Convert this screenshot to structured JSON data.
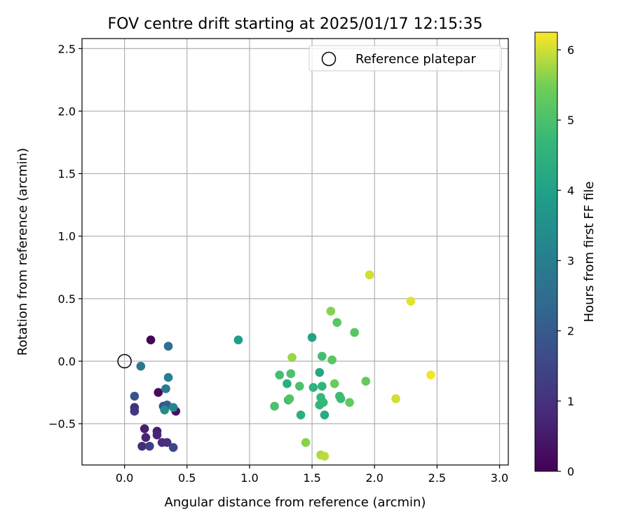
{
  "chart_data": {
    "type": "scatter",
    "title": "FOV centre drift starting at 2025/01/17 12:15:35",
    "xlabel": "Angular distance from reference (arcmin)",
    "ylabel": "Rotation from reference (arcmin)",
    "xlim": [
      -0.34,
      3.07
    ],
    "ylim": [
      -0.83,
      2.58
    ],
    "x_ticks": [
      0.0,
      0.5,
      1.0,
      1.5,
      2.0,
      2.5,
      3.0
    ],
    "x_tick_labels": [
      "0.0",
      "0.5",
      "1.0",
      "1.5",
      "2.0",
      "2.5",
      "3.0"
    ],
    "y_ticks": [
      -0.5,
      0.0,
      0.5,
      1.0,
      1.5,
      2.0,
      2.5
    ],
    "y_tick_labels": [
      "−0.5",
      "0.0",
      "0.5",
      "1.0",
      "1.5",
      "2.0",
      "2.5"
    ],
    "grid": true,
    "legend": {
      "position": "top-right",
      "entries": [
        "Reference platepar"
      ]
    },
    "reference_point": {
      "label": "Reference platepar",
      "x": 0.0,
      "y": 0.0
    },
    "colorbar": {
      "label": "Hours from first FF file",
      "range": [
        0,
        6.25
      ],
      "ticks": [
        0,
        1,
        2,
        3,
        4,
        5,
        6
      ],
      "tick_labels": [
        "0",
        "1",
        "2",
        "3",
        "4",
        "5",
        "6"
      ],
      "colormap": "viridis"
    },
    "series": [
      {
        "points": [
          {
            "x": 0.21,
            "y": 0.17,
            "c": 0.1
          },
          {
            "x": 0.27,
            "y": -0.25,
            "c": 0.2
          },
          {
            "x": 0.41,
            "y": -0.4,
            "c": 0.3
          },
          {
            "x": 0.16,
            "y": -0.54,
            "c": 0.6
          },
          {
            "x": 0.26,
            "y": -0.56,
            "c": 0.6
          },
          {
            "x": 0.17,
            "y": -0.61,
            "c": 0.7
          },
          {
            "x": 0.26,
            "y": -0.59,
            "c": 0.7
          },
          {
            "x": 0.14,
            "y": -0.68,
            "c": 0.9
          },
          {
            "x": 0.3,
            "y": -0.65,
            "c": 0.9
          },
          {
            "x": 0.34,
            "y": -0.65,
            "c": 1.0
          },
          {
            "x": 0.08,
            "y": -0.37,
            "c": 1.0
          },
          {
            "x": 0.08,
            "y": -0.4,
            "c": 1.1
          },
          {
            "x": 0.2,
            "y": -0.68,
            "c": 1.3
          },
          {
            "x": 0.39,
            "y": -0.69,
            "c": 1.5
          },
          {
            "x": 0.08,
            "y": -0.28,
            "c": 1.8
          },
          {
            "x": 0.31,
            "y": -0.36,
            "c": 1.9
          },
          {
            "x": 0.34,
            "y": -0.35,
            "c": 2.1
          },
          {
            "x": 0.35,
            "y": 0.12,
            "c": 2.6
          },
          {
            "x": 0.13,
            "y": -0.04,
            "c": 2.8
          },
          {
            "x": 0.33,
            "y": -0.22,
            "c": 2.9
          },
          {
            "x": 0.35,
            "y": -0.13,
            "c": 3.1
          },
          {
            "x": 0.39,
            "y": -0.37,
            "c": 3.2
          },
          {
            "x": 0.32,
            "y": -0.39,
            "c": 3.4
          },
          {
            "x": 0.91,
            "y": 0.17,
            "c": 3.9
          },
          {
            "x": 1.5,
            "y": 0.19,
            "c": 4.1
          },
          {
            "x": 1.56,
            "y": -0.09,
            "c": 4.2
          },
          {
            "x": 1.6,
            "y": -0.43,
            "c": 4.3
          },
          {
            "x": 1.3,
            "y": -0.18,
            "c": 4.4
          },
          {
            "x": 1.41,
            "y": -0.43,
            "c": 4.4
          },
          {
            "x": 1.31,
            "y": -0.31,
            "c": 4.5
          },
          {
            "x": 1.51,
            "y": -0.21,
            "c": 4.5
          },
          {
            "x": 1.56,
            "y": -0.35,
            "c": 4.6
          },
          {
            "x": 1.58,
            "y": -0.2,
            "c": 4.6
          },
          {
            "x": 1.57,
            "y": -0.29,
            "c": 4.7
          },
          {
            "x": 1.59,
            "y": -0.33,
            "c": 4.7
          },
          {
            "x": 1.73,
            "y": -0.3,
            "c": 4.8
          },
          {
            "x": 1.72,
            "y": -0.28,
            "c": 4.8
          },
          {
            "x": 1.58,
            "y": 0.04,
            "c": 4.9
          },
          {
            "x": 1.24,
            "y": -0.11,
            "c": 4.9
          },
          {
            "x": 1.2,
            "y": -0.36,
            "c": 5.0
          },
          {
            "x": 1.4,
            "y": -0.2,
            "c": 5.0
          },
          {
            "x": 1.33,
            "y": -0.1,
            "c": 5.0
          },
          {
            "x": 1.32,
            "y": -0.3,
            "c": 5.1
          },
          {
            "x": 1.66,
            "y": 0.01,
            "c": 5.2
          },
          {
            "x": 1.7,
            "y": 0.31,
            "c": 5.2
          },
          {
            "x": 1.84,
            "y": 0.23,
            "c": 5.2
          },
          {
            "x": 1.8,
            "y": -0.33,
            "c": 5.3
          },
          {
            "x": 1.93,
            "y": -0.16,
            "c": 5.3
          },
          {
            "x": 1.68,
            "y": -0.18,
            "c": 5.4
          },
          {
            "x": 1.65,
            "y": 0.4,
            "c": 5.6
          },
          {
            "x": 1.34,
            "y": 0.03,
            "c": 5.7
          },
          {
            "x": 1.45,
            "y": -0.65,
            "c": 5.6
          },
          {
            "x": 1.57,
            "y": -0.75,
            "c": 5.8
          },
          {
            "x": 1.6,
            "y": -0.76,
            "c": 5.9
          },
          {
            "x": 2.17,
            "y": -0.3,
            "c": 6.0
          },
          {
            "x": 1.96,
            "y": 0.69,
            "c": 6.0
          },
          {
            "x": 2.29,
            "y": 0.48,
            "c": 6.1
          },
          {
            "x": 2.45,
            "y": -0.11,
            "c": 6.2
          }
        ]
      }
    ]
  }
}
